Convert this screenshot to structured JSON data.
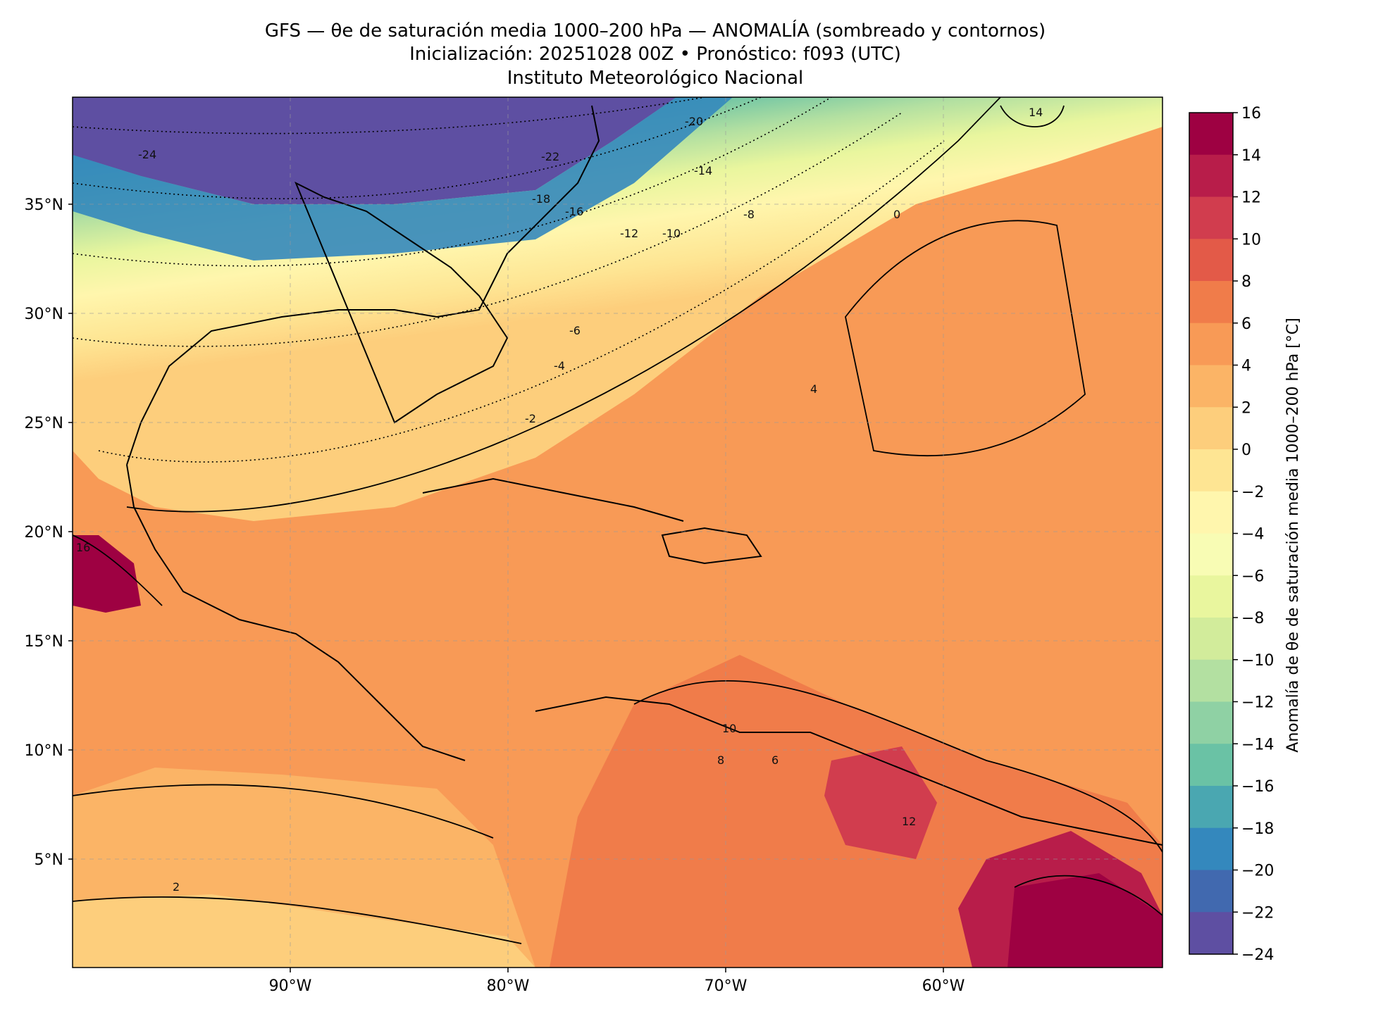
{
  "title": {
    "line1": "GFS — θe de saturación media 1000–200 hPa — ANOMALÍA (sombreado y contornos)",
    "line2": "Inicialización: 20251028 00Z   •   Pronóstico: f093 (UTC)",
    "line3": "Instituto Meteorológico Nacional"
  },
  "map": {
    "lat_ticks": [
      "35°N",
      "30°N",
      "25°N",
      "20°N",
      "15°N",
      "10°N",
      "5°N"
    ],
    "lon_ticks": [
      "90°W",
      "80°W",
      "70°W",
      "60°W"
    ],
    "contour_labels": [
      "-24",
      "-22",
      "-20",
      "-18",
      "-16",
      "-14",
      "-12",
      "-10",
      "-8",
      "-6",
      "-4",
      "-2",
      "0",
      "2",
      "4",
      "6",
      "8",
      "10",
      "12",
      "14",
      "16"
    ]
  },
  "colorbar": {
    "label": "Anomalía de θe de saturación media 1000–200 hPa [°C]",
    "ticks": [
      "16",
      "14",
      "12",
      "10",
      "8",
      "6",
      "4",
      "2",
      "0",
      "−2",
      "−4",
      "−6",
      "−8",
      "−10",
      "−12",
      "−14",
      "−16",
      "−18",
      "−20",
      "−22",
      "−24"
    ],
    "colors": [
      "#9e0142",
      "#b81d4a",
      "#d13d4e",
      "#e35a48",
      "#f07c4a",
      "#f89a56",
      "#fbb466",
      "#fdce7c",
      "#fee593",
      "#fff6ad",
      "#f8fcb4",
      "#e9f69e",
      "#d2ec9b",
      "#b3e0a1",
      "#8fd1a4",
      "#6ac2a5",
      "#4aa7b1",
      "#3488bd",
      "#4169af",
      "#5e4fa2"
    ]
  }
}
